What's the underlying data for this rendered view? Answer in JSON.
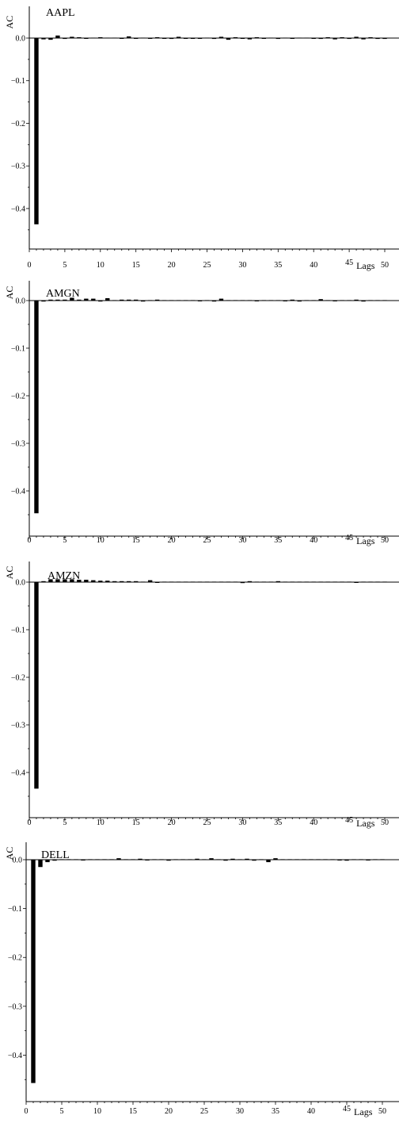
{
  "chart_data": [
    {
      "type": "bar",
      "title": "AAPL",
      "ylabel": "AC",
      "xlabel": "Lags",
      "xlim": [
        0,
        51
      ],
      "ylim": [
        -0.5,
        0.02
      ],
      "x_ticks": [
        0,
        5,
        10,
        15,
        20,
        25,
        30,
        35,
        40,
        45,
        50
      ],
      "y_ticks": [
        0.0,
        -0.1,
        -0.2,
        -0.3,
        -0.4
      ],
      "y_tick_labels": [
        "0.0",
        "−0.1",
        "−0.2",
        "−0.3",
        "−0.4"
      ],
      "x_tick_labels": [
        "0",
        "5",
        "10",
        "15",
        "20",
        "25",
        "30",
        "35",
        "40",
        "45",
        "50"
      ],
      "grid": false,
      "lags": [
        1,
        2,
        3,
        4,
        5,
        6,
        7,
        8,
        9,
        10,
        11,
        12,
        13,
        14,
        15,
        16,
        17,
        18,
        19,
        20,
        21,
        22,
        23,
        24,
        25,
        26,
        27,
        28,
        29,
        30,
        31,
        32,
        33,
        34,
        35,
        36,
        37,
        38,
        39,
        40,
        41,
        42,
        43,
        44,
        45,
        46,
        47,
        48,
        49,
        50
      ],
      "values": [
        -0.437,
        -0.003,
        -0.004,
        0.006,
        -0.002,
        0.003,
        0.002,
        -0.001,
        0.001,
        0.002,
        0.001,
        0.001,
        -0.001,
        0.004,
        -0.001,
        0.001,
        0.0,
        0.002,
        -0.001,
        -0.002,
        0.003,
        0.0,
        -0.001,
        0.0,
        0.001,
        -0.002,
        0.003,
        -0.004,
        0.002,
        -0.001,
        -0.003,
        0.002,
        0.0,
        0.001,
        -0.002,
        0.001,
        0.0,
        0.001,
        0.001,
        0.0,
        -0.002,
        0.002,
        -0.003,
        0.002,
        -0.002,
        0.003,
        -0.003,
        0.002,
        -0.002,
        -0.002
      ]
    },
    {
      "type": "bar",
      "title": "AMGN",
      "ylabel": "AC",
      "xlabel": "Lags",
      "xlim": [
        0,
        51
      ],
      "ylim": [
        -0.5,
        0.02
      ],
      "x_ticks": [
        0,
        5,
        10,
        15,
        20,
        25,
        30,
        35,
        40,
        45,
        50
      ],
      "y_ticks": [
        0.0,
        -0.1,
        -0.2,
        -0.3,
        -0.4
      ],
      "y_tick_labels": [
        "0.0",
        "−0.1",
        "−0.2",
        "−0.3",
        "−0.4"
      ],
      "x_tick_labels": [
        "0",
        "5",
        "10",
        "15",
        "20",
        "25",
        "30",
        "35",
        "40",
        "45",
        "50"
      ],
      "grid": false,
      "lags": [
        1,
        2,
        3,
        4,
        5,
        6,
        7,
        8,
        9,
        10,
        11,
        12,
        13,
        14,
        15,
        16,
        17,
        18,
        19,
        20,
        21,
        22,
        23,
        24,
        25,
        26,
        27,
        28,
        29,
        30,
        31,
        32,
        33,
        34,
        35,
        36,
        37,
        38,
        39,
        40,
        41,
        42,
        43,
        44,
        45,
        46,
        47,
        48,
        49,
        50
      ],
      "values": [
        -0.447,
        -0.002,
        0.002,
        0.002,
        0.002,
        0.006,
        0.002,
        0.004,
        0.004,
        -0.002,
        0.005,
        0.001,
        0.002,
        0.002,
        0.002,
        -0.002,
        0.001,
        0.002,
        0.001,
        0.001,
        0.001,
        0.001,
        0.001,
        0.0,
        0.001,
        -0.002,
        0.004,
        0.001,
        0.001,
        0.001,
        0.001,
        -0.001,
        0.001,
        0.001,
        0.001,
        0.0,
        0.002,
        -0.002,
        0.001,
        0.001,
        0.003,
        0.001,
        -0.001,
        0.001,
        0.001,
        0.002,
        -0.002,
        0.001,
        0.001,
        0.001
      ]
    },
    {
      "type": "bar",
      "title": "AMZN",
      "ylabel": "AC",
      "xlabel": "Lags",
      "xlim": [
        0,
        51
      ],
      "ylim": [
        -0.5,
        0.02
      ],
      "x_ticks": [
        0,
        5,
        10,
        15,
        20,
        25,
        30,
        35,
        40,
        45,
        50
      ],
      "y_ticks": [
        0.0,
        -0.1,
        -0.2,
        -0.3,
        -0.4
      ],
      "y_tick_labels": [
        "0.0",
        "−0.1",
        "−0.2",
        "−0.3",
        "−0.4"
      ],
      "x_tick_labels": [
        "0",
        "5",
        "10",
        "15",
        "20",
        "25",
        "30",
        "35",
        "40",
        "45",
        "50"
      ],
      "grid": false,
      "lags": [
        1,
        2,
        3,
        4,
        5,
        6,
        7,
        8,
        9,
        10,
        11,
        12,
        13,
        14,
        15,
        16,
        17,
        18,
        19,
        20,
        21,
        22,
        23,
        24,
        25,
        26,
        27,
        28,
        29,
        30,
        31,
        32,
        33,
        34,
        35,
        36,
        37,
        38,
        39,
        40,
        41,
        42,
        43,
        44,
        45,
        46,
        47,
        48,
        49,
        50
      ],
      "values": [
        -0.434,
        0.002,
        0.006,
        0.006,
        0.006,
        0.006,
        0.005,
        0.005,
        0.004,
        0.003,
        0.003,
        0.002,
        0.002,
        0.002,
        0.002,
        0.001,
        0.004,
        -0.001,
        0.001,
        0.001,
        0.001,
        0.001,
        0.001,
        0.001,
        0.001,
        0.001,
        0.001,
        0.001,
        0.001,
        -0.002,
        0.002,
        0.001,
        0.001,
        0.001,
        0.002,
        0.001,
        0.001,
        0.001,
        0.001,
        0.001,
        0.001,
        0.001,
        0.001,
        0.001,
        0.001,
        -0.001,
        0.001,
        0.001,
        0.001,
        0.001
      ]
    },
    {
      "type": "bar",
      "title": "DELL",
      "ylabel": "AC",
      "xlabel": "Lags",
      "xlim": [
        0,
        51
      ],
      "ylim": [
        -0.5,
        0.02
      ],
      "x_ticks": [
        0,
        5,
        10,
        15,
        20,
        25,
        30,
        35,
        40,
        45,
        50
      ],
      "y_ticks": [
        0.0,
        -0.1,
        -0.2,
        -0.3,
        -0.4
      ],
      "y_tick_labels": [
        "0.0",
        "−0.1",
        "−0.2",
        "−0.3",
        "−0.4"
      ],
      "x_tick_labels": [
        "0",
        "5",
        "10",
        "15",
        "20",
        "25",
        "30",
        "35",
        "40",
        "45",
        "50"
      ],
      "grid": false,
      "lags": [
        1,
        2,
        3,
        4,
        5,
        6,
        7,
        8,
        9,
        10,
        11,
        12,
        13,
        14,
        15,
        16,
        17,
        18,
        19,
        20,
        21,
        22,
        23,
        24,
        25,
        26,
        27,
        28,
        29,
        30,
        31,
        32,
        33,
        34,
        35,
        36,
        37,
        38,
        39,
        40,
        41,
        42,
        43,
        44,
        45,
        46,
        47,
        48,
        49,
        50
      ],
      "values": [
        -0.457,
        -0.015,
        -0.005,
        -0.002,
        0.001,
        0.001,
        0.001,
        -0.001,
        0.001,
        0.001,
        0.001,
        0.001,
        0.003,
        0.001,
        0.001,
        0.002,
        -0.001,
        0.001,
        0.001,
        -0.002,
        0.001,
        0.001,
        0.001,
        0.002,
        0.001,
        0.003,
        0.001,
        -0.002,
        0.002,
        0.001,
        0.002,
        -0.002,
        0.001,
        -0.005,
        0.003,
        0.001,
        0.001,
        0.001,
        0.001,
        0.001,
        0.001,
        0.001,
        0.001,
        -0.001,
        -0.002,
        0.001,
        0.001,
        -0.001,
        0.001,
        0.001
      ]
    }
  ]
}
